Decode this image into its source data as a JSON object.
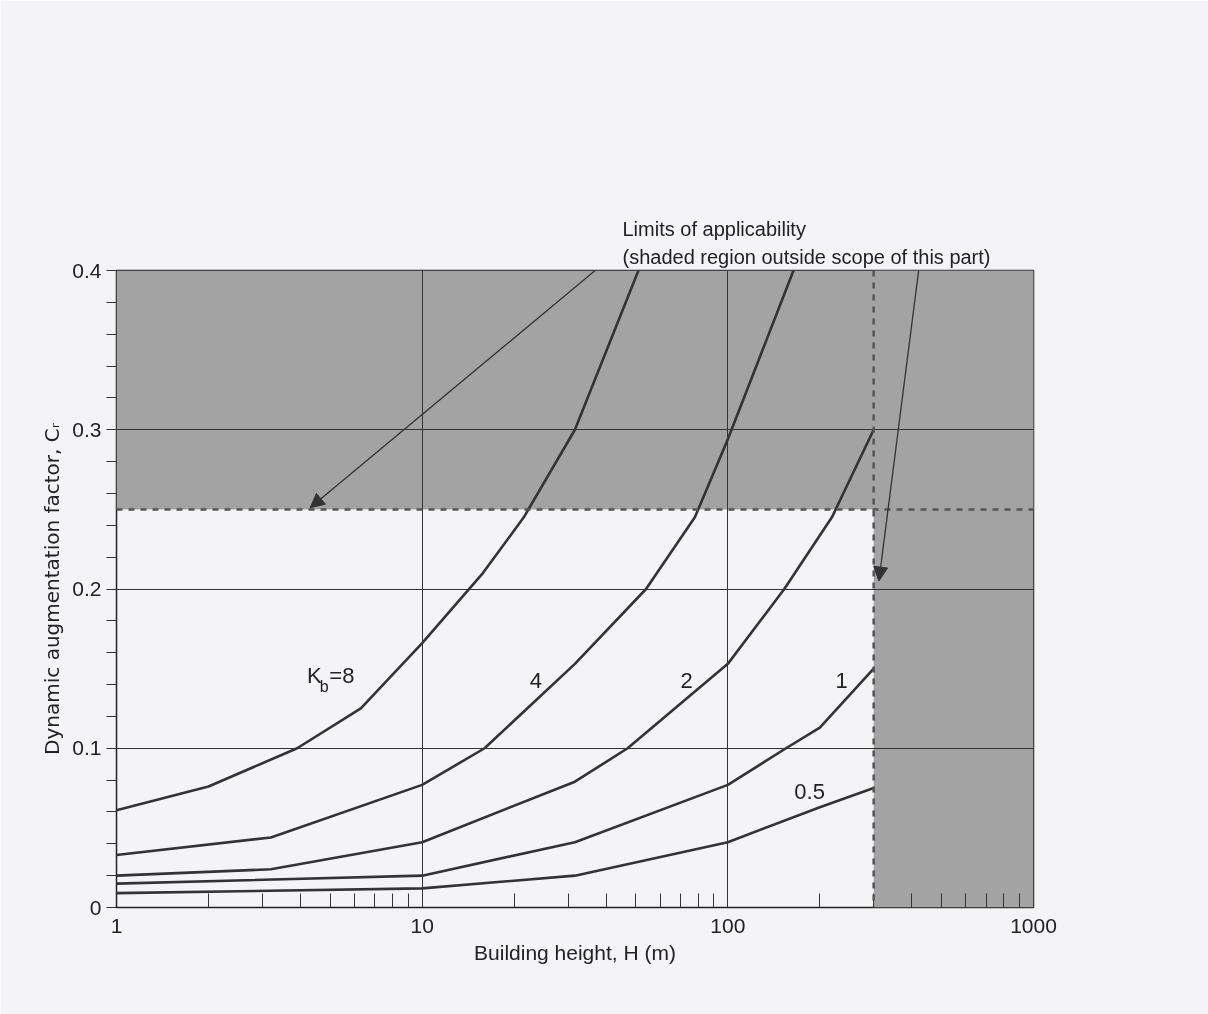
{
  "chart_data": {
    "type": "line",
    "xlabel": "Building height, H (m)",
    "ylabel": "Dynamic augmentation factor, Cᵣ",
    "annotations": [
      "Limits of applicability\n(shaded region outside scope of this part)"
    ],
    "log": "x",
    "grid": true,
    "marker": "none",
    "line_style": "solid",
    "xlim": [
      1,
      1000
    ],
    "xticks": [
      1,
      10,
      100,
      1000
    ],
    "ylim": [
      0,
      0.4
    ],
    "yticks": [
      0,
      {
        "value": 0.02,
        "label": null
      },
      {
        "value": 0.04,
        "label": null
      },
      {
        "value": 0.06,
        "label": null
      },
      {
        "value": 0.08,
        "label": null
      },
      0.1,
      {
        "value": 0.12,
        "label": null
      },
      {
        "value": 0.14,
        "label": null
      },
      {
        "value": 0.16,
        "label": null
      },
      {
        "value": 0.18,
        "label": null
      },
      0.2,
      {
        "value": 0.22,
        "label": null
      },
      {
        "value": 0.24,
        "label": null
      },
      {
        "value": 0.26,
        "label": null
      },
      {
        "value": 0.28,
        "label": null
      },
      0.3,
      {
        "value": 0.32,
        "label": null
      },
      {
        "value": 0.34,
        "label": null
      },
      {
        "value": 0.36,
        "label": null
      },
      {
        "value": 0.38,
        "label": null
      },
      0.4
    ],
    "bands": [
      {
        "axis": "y",
        "from": 0.25,
        "to": 0.4,
        "color": "#a3a3a3"
      },
      {
        "axis": "x",
        "from": 300,
        "to": 1000,
        "color": "#a3a3a3"
      }
    ],
    "ref_lines": [
      {
        "axis": "y",
        "value": 0.25,
        "color": "#555555",
        "line_style": "dashed"
      },
      {
        "axis": "x",
        "value": 300,
        "color": "#555555",
        "line_style": "dashed"
      }
    ],
    "series": [
      {
        "name": "K$_{b}$=8",
        "color": "#333333",
        "x": [
          1,
          2,
          3.9,
          6.3,
          10,
          15.8,
          21.5,
          31.6,
          51
        ],
        "values": [
          0.061,
          0.076,
          0.1,
          0.125,
          0.166,
          0.21,
          0.245,
          0.3,
          0.4
        ]
      },
      {
        "name": "4",
        "color": "#333333",
        "x": [
          1,
          3.2,
          10,
          16,
          31.6,
          54,
          78,
          100,
          164
        ],
        "values": [
          0.033,
          0.044,
          0.077,
          0.1,
          0.153,
          0.2,
          0.245,
          0.294,
          0.4
        ]
      },
      {
        "name": "2",
        "color": "#333333",
        "x": [
          1,
          3.2,
          10,
          31.6,
          47,
          100,
          153,
          219,
          300
        ],
        "values": [
          0.02,
          0.024,
          0.041,
          0.079,
          0.1,
          0.153,
          0.2,
          0.245,
          0.3
        ]
      },
      {
        "name": "1",
        "color": "#333333",
        "x": [
          1,
          10,
          31.6,
          100,
          155,
          200,
          300
        ],
        "values": [
          0.015,
          0.02,
          0.041,
          0.077,
          0.1,
          0.113,
          0.15
        ]
      },
      {
        "name": "0.5",
        "color": "#333333",
        "x": [
          1,
          10,
          31.6,
          100,
          200,
          300
        ],
        "values": [
          0.009,
          0.012,
          0.02,
          0.041,
          0.063,
          0.075
        ]
      }
    ]
  }
}
